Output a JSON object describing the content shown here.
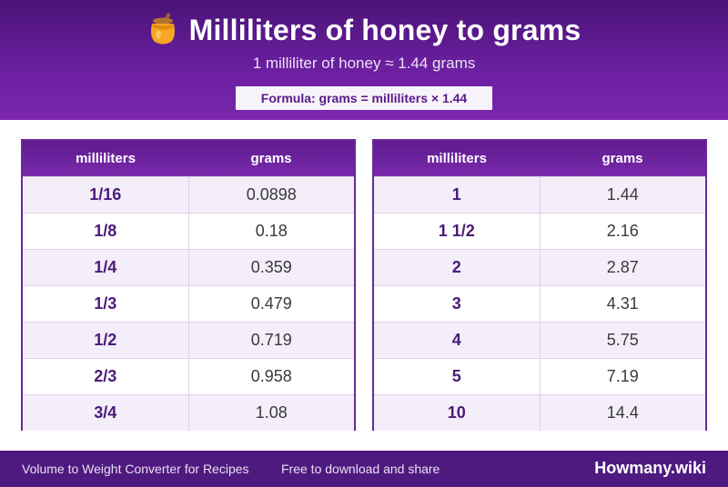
{
  "header": {
    "icon": "honey-pot-icon",
    "title": "Milliliters of honey to grams",
    "subtitle": "1 milliliter of honey ≈ 1.44 grams",
    "formula": "Formula: grams = milliliters × 1.44"
  },
  "tables": {
    "left": {
      "col1": "milliliters",
      "col2": "grams",
      "rows": [
        {
          "ml": "1/16",
          "g": "0.0898"
        },
        {
          "ml": "1/8",
          "g": "0.18"
        },
        {
          "ml": "1/4",
          "g": "0.359"
        },
        {
          "ml": "1/3",
          "g": "0.479"
        },
        {
          "ml": "1/2",
          "g": "0.719"
        },
        {
          "ml": "2/3",
          "g": "0.958"
        },
        {
          "ml": "3/4",
          "g": "1.08"
        }
      ]
    },
    "right": {
      "col1": "milliliters",
      "col2": "grams",
      "rows": [
        {
          "ml": "1",
          "g": "1.44"
        },
        {
          "ml": "1 1/2",
          "g": "2.16"
        },
        {
          "ml": "2",
          "g": "2.87"
        },
        {
          "ml": "3",
          "g": "4.31"
        },
        {
          "ml": "4",
          "g": "5.75"
        },
        {
          "ml": "5",
          "g": "7.19"
        },
        {
          "ml": "10",
          "g": "14.4"
        }
      ]
    }
  },
  "footer": {
    "description": "Volume to Weight Converter for Recipes",
    "note": "Free to download and share",
    "brand": "Howmany.wiki"
  },
  "colors": {
    "header_purple": "#6a1f9e",
    "footer_purple": "#4f1a80",
    "accent_text": "#4b1a78"
  }
}
